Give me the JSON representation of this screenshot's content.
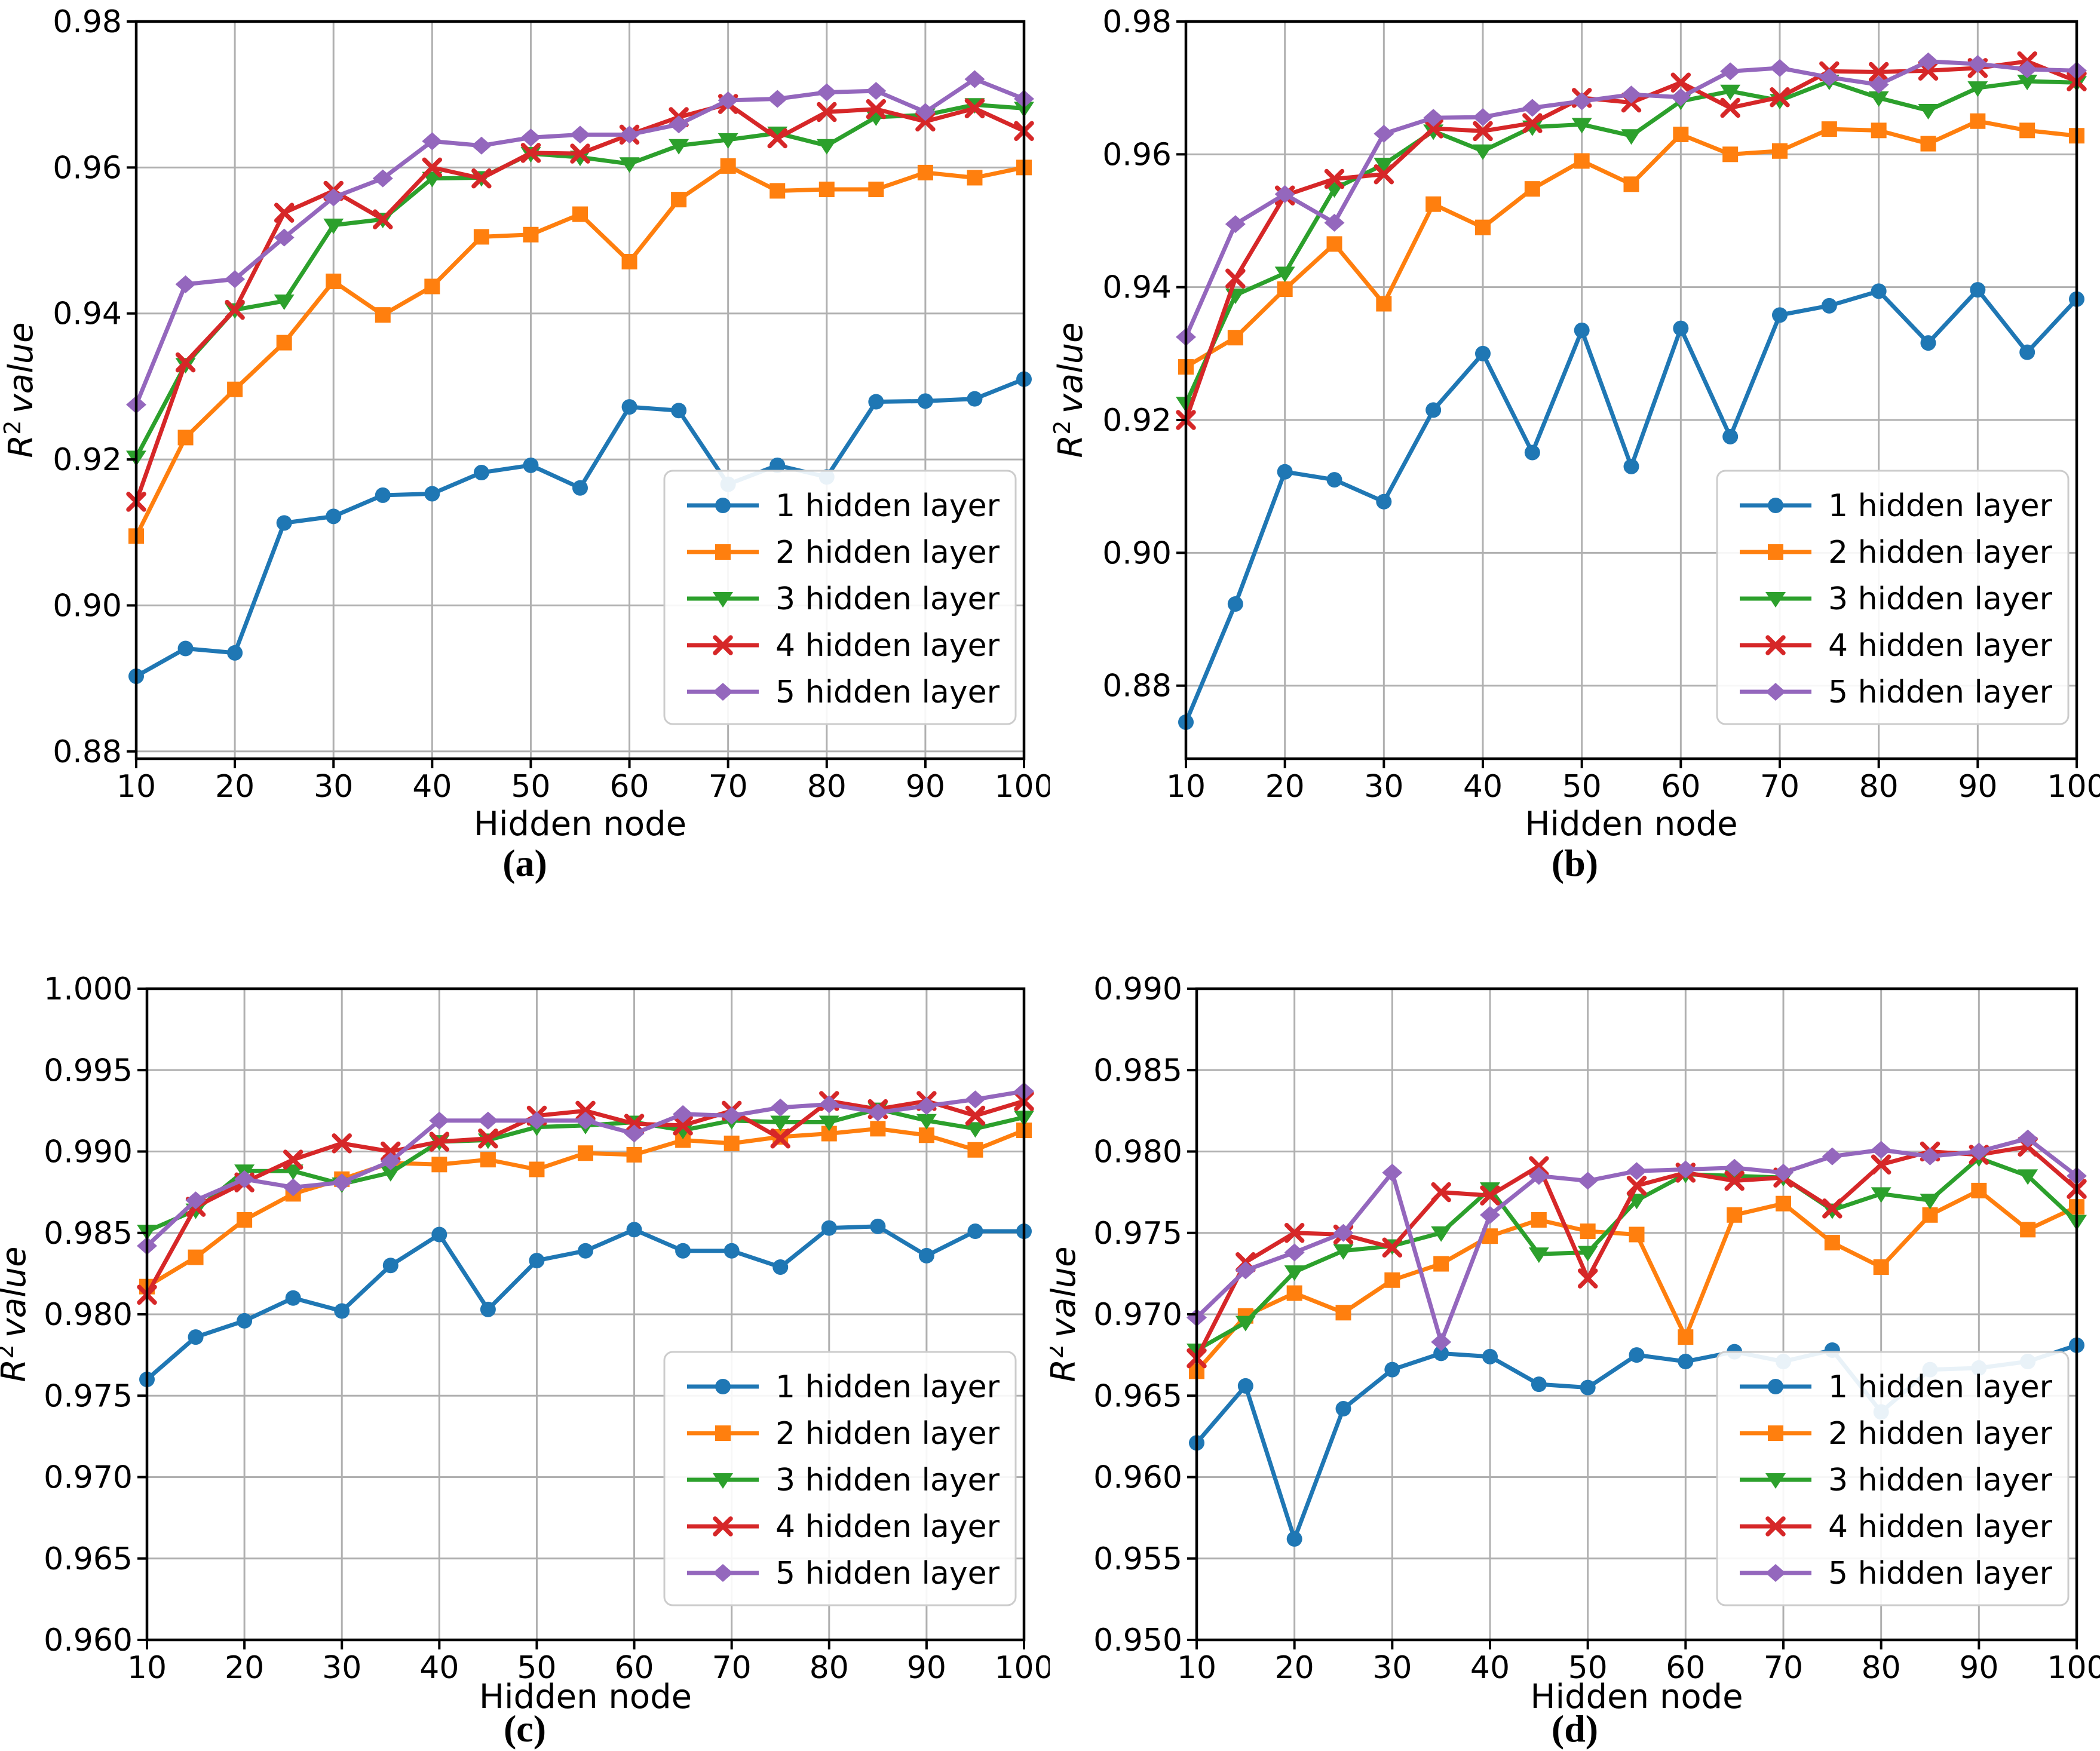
{
  "figure": {
    "background": "#ffffff",
    "grid_color": "#b0b0b0",
    "frame_color": "#000000",
    "legend_border_color": "#cccccc",
    "text_color": "#000000"
  },
  "chart_data": [
    {
      "id": "a",
      "caption": "(a)",
      "type": "line",
      "xlabel": "Hidden node",
      "ylabel": {
        "var": "R",
        "sup": "2",
        "rest": "value"
      },
      "x": [
        10,
        15,
        20,
        25,
        30,
        35,
        40,
        45,
        50,
        55,
        60,
        65,
        70,
        75,
        80,
        85,
        90,
        95,
        100
      ],
      "xlim": [
        10,
        100
      ],
      "xtick_values": [
        10,
        20,
        30,
        40,
        50,
        60,
        70,
        80,
        90,
        100
      ],
      "xtick_labels": [
        "10",
        "20",
        "30",
        "40",
        "50",
        "60",
        "70",
        "80",
        "90",
        "100"
      ],
      "ylim": [
        0.879,
        0.98
      ],
      "ytick_values": [
        0.88,
        0.9,
        0.92,
        0.94,
        0.96,
        0.98
      ],
      "ytick_labels": [
        "0.88",
        "0.90",
        "0.92",
        "0.94",
        "0.96",
        "0.98"
      ],
      "grid": true,
      "legend_position": "lower right",
      "series": [
        {
          "name": "1 hidden layer",
          "color": "#1f77b4",
          "marker": "circle",
          "values": [
            0.8903,
            0.8941,
            0.8935,
            0.9113,
            0.9122,
            0.9151,
            0.9153,
            0.9182,
            0.9192,
            0.9161,
            0.9272,
            0.9267,
            0.9166,
            0.9192,
            0.9176,
            0.9279,
            0.928,
            0.9283,
            0.931
          ]
        },
        {
          "name": "2 hidden layer",
          "color": "#ff7f0e",
          "marker": "square",
          "values": [
            0.9095,
            0.923,
            0.9296,
            0.936,
            0.9444,
            0.9398,
            0.9437,
            0.9505,
            0.9508,
            0.9536,
            0.9471,
            0.9556,
            0.9602,
            0.9568,
            0.957,
            0.957,
            0.9593,
            0.9586,
            0.96
          ]
        },
        {
          "name": "3 hidden layer",
          "color": "#2ca02c",
          "marker": "triangle-down",
          "values": [
            0.9203,
            0.933,
            0.9405,
            0.9417,
            0.9521,
            0.9529,
            0.9585,
            0.9586,
            0.9619,
            0.9614,
            0.9605,
            0.963,
            0.9638,
            0.9647,
            0.963,
            0.9669,
            0.9672,
            0.9686,
            0.9681
          ]
        },
        {
          "name": "4 hidden layer",
          "color": "#d62728",
          "marker": "x",
          "values": [
            0.9142,
            0.9333,
            0.9405,
            0.9538,
            0.9568,
            0.9529,
            0.96,
            0.9585,
            0.962,
            0.9619,
            0.9645,
            0.9669,
            0.9687,
            0.964,
            0.9676,
            0.968,
            0.9663,
            0.9681,
            0.965
          ]
        },
        {
          "name": "5 hidden layer",
          "color": "#9467bd",
          "marker": "diamond",
          "values": [
            0.9275,
            0.944,
            0.9447,
            0.9504,
            0.9559,
            0.9585,
            0.9636,
            0.963,
            0.9641,
            0.9645,
            0.9645,
            0.9659,
            0.9692,
            0.9694,
            0.9703,
            0.9705,
            0.9676,
            0.9721,
            0.9694
          ]
        }
      ]
    },
    {
      "id": "b",
      "caption": "(b)",
      "type": "line",
      "xlabel": "Hidden node",
      "ylabel": {
        "var": "R",
        "sup": "2",
        "rest": "value"
      },
      "x": [
        10,
        15,
        20,
        25,
        30,
        35,
        40,
        45,
        50,
        55,
        60,
        65,
        70,
        75,
        80,
        85,
        90,
        95,
        100
      ],
      "xlim": [
        10,
        100
      ],
      "xtick_values": [
        10,
        20,
        30,
        40,
        50,
        60,
        70,
        80,
        90,
        100
      ],
      "xtick_labels": [
        "10",
        "20",
        "30",
        "40",
        "50",
        "60",
        "70",
        "80",
        "90",
        "100"
      ],
      "ylim": [
        0.869,
        0.98
      ],
      "ytick_values": [
        0.88,
        0.9,
        0.92,
        0.94,
        0.96,
        0.98
      ],
      "ytick_labels": [
        "0.88",
        "0.90",
        "0.92",
        "0.94",
        "0.96",
        "0.98"
      ],
      "grid": true,
      "legend_position": "lower right",
      "series": [
        {
          "name": "1 hidden layer",
          "color": "#1f77b4",
          "marker": "circle",
          "values": [
            0.8745,
            0.8923,
            0.9122,
            0.911,
            0.9077,
            0.9215,
            0.93,
            0.9151,
            0.9335,
            0.913,
            0.9338,
            0.9175,
            0.9358,
            0.9372,
            0.9394,
            0.9316,
            0.9396,
            0.9302,
            0.9382
          ]
        },
        {
          "name": "2 hidden layer",
          "color": "#ff7f0e",
          "marker": "square",
          "values": [
            0.928,
            0.9324,
            0.9397,
            0.9465,
            0.9375,
            0.9525,
            0.949,
            0.9548,
            0.959,
            0.9555,
            0.963,
            0.96,
            0.9605,
            0.9638,
            0.9636,
            0.9616,
            0.965,
            0.9636,
            0.9628
          ]
        },
        {
          "name": "3 hidden layer",
          "color": "#2ca02c",
          "marker": "triangle-down",
          "values": [
            0.9225,
            0.9388,
            0.9421,
            0.9548,
            0.9585,
            0.9635,
            0.9605,
            0.9641,
            0.9645,
            0.9628,
            0.968,
            0.9695,
            0.9681,
            0.971,
            0.9685,
            0.9666,
            0.97,
            0.971,
            0.9708
          ]
        },
        {
          "name": "4 hidden layer",
          "color": "#d62728",
          "marker": "x",
          "values": [
            0.92,
            0.9413,
            0.9538,
            0.9563,
            0.957,
            0.9639,
            0.9635,
            0.9647,
            0.9685,
            0.9678,
            0.9708,
            0.967,
            0.9686,
            0.9725,
            0.9724,
            0.9726,
            0.973,
            0.974,
            0.971
          ]
        },
        {
          "name": "5 hidden layer",
          "color": "#9467bd",
          "marker": "diamond",
          "values": [
            0.9325,
            0.9495,
            0.954,
            0.9497,
            0.9631,
            0.9655,
            0.9656,
            0.967,
            0.968,
            0.969,
            0.9686,
            0.9725,
            0.973,
            0.9716,
            0.9705,
            0.974,
            0.9736,
            0.9728,
            0.9726
          ]
        }
      ]
    },
    {
      "id": "c",
      "caption": "(c)",
      "type": "line",
      "xlabel": "Hidden node",
      "ylabel": {
        "var": "R",
        "sup": "2",
        "rest": "value"
      },
      "x": [
        10,
        15,
        20,
        25,
        30,
        35,
        40,
        45,
        50,
        55,
        60,
        65,
        70,
        75,
        80,
        85,
        90,
        95,
        100
      ],
      "xlim": [
        10,
        100
      ],
      "xtick_values": [
        10,
        20,
        30,
        40,
        50,
        60,
        70,
        80,
        90,
        100
      ],
      "xtick_labels": [
        "10",
        "20",
        "30",
        "40",
        "50",
        "60",
        "70",
        "80",
        "90",
        "100"
      ],
      "ylim": [
        0.96,
        1.0
      ],
      "ytick_values": [
        0.96,
        0.965,
        0.97,
        0.975,
        0.98,
        0.985,
        0.99,
        0.995,
        1.0
      ],
      "ytick_labels": [
        "0.960",
        "0.965",
        "0.970",
        "0.975",
        "0.980",
        "0.985",
        "0.990",
        "0.995",
        "1.000"
      ],
      "grid": true,
      "legend_position": "lower right",
      "series": [
        {
          "name": "1 hidden layer",
          "color": "#1f77b4",
          "marker": "circle",
          "values": [
            0.976,
            0.9786,
            0.9796,
            0.981,
            0.9802,
            0.983,
            0.9849,
            0.9803,
            0.9833,
            0.9839,
            0.9852,
            0.9839,
            0.9839,
            0.9829,
            0.9853,
            0.9854,
            0.9836,
            0.9851,
            0.9851
          ]
        },
        {
          "name": "2 hidden layer",
          "color": "#ff7f0e",
          "marker": "square",
          "values": [
            0.9817,
            0.9835,
            0.9858,
            0.9874,
            0.9883,
            0.9893,
            0.9892,
            0.9895,
            0.9889,
            0.9899,
            0.9898,
            0.9907,
            0.9905,
            0.9909,
            0.9911,
            0.9914,
            0.991,
            0.9901,
            0.9913
          ]
        },
        {
          "name": "3 hidden layer",
          "color": "#2ca02c",
          "marker": "triangle-down",
          "values": [
            0.9851,
            0.9864,
            0.9888,
            0.9888,
            0.988,
            0.9887,
            0.9906,
            0.9907,
            0.9915,
            0.9916,
            0.9918,
            0.9913,
            0.9919,
            0.9918,
            0.9918,
            0.9926,
            0.9919,
            0.9914,
            0.9921
          ]
        },
        {
          "name": "4 hidden layer",
          "color": "#d62728",
          "marker": "x",
          "values": [
            0.9812,
            0.9866,
            0.9881,
            0.9895,
            0.9905,
            0.99,
            0.9906,
            0.9908,
            0.9922,
            0.9925,
            0.9917,
            0.9916,
            0.9925,
            0.9908,
            0.9931,
            0.9926,
            0.9931,
            0.9922,
            0.9931
          ]
        },
        {
          "name": "5 hidden layer",
          "color": "#9467bd",
          "marker": "diamond",
          "values": [
            0.9842,
            0.987,
            0.9883,
            0.9878,
            0.9881,
            0.9894,
            0.9919,
            0.9919,
            0.9919,
            0.9919,
            0.9911,
            0.9923,
            0.9922,
            0.9927,
            0.9929,
            0.9924,
            0.9928,
            0.9932,
            0.9937
          ]
        }
      ]
    },
    {
      "id": "d",
      "caption": "(d)",
      "type": "line",
      "xlabel": "Hidden node",
      "ylabel": {
        "var": "R",
        "sup": "2",
        "rest": "value"
      },
      "x": [
        10,
        15,
        20,
        25,
        30,
        35,
        40,
        45,
        50,
        55,
        60,
        65,
        70,
        75,
        80,
        85,
        90,
        95,
        100
      ],
      "xlim": [
        10,
        100
      ],
      "xtick_values": [
        10,
        20,
        30,
        40,
        50,
        60,
        70,
        80,
        90,
        100
      ],
      "xtick_labels": [
        "10",
        "20",
        "30",
        "40",
        "50",
        "60",
        "70",
        "80",
        "90",
        "100"
      ],
      "ylim": [
        0.95,
        0.99
      ],
      "ytick_values": [
        0.95,
        0.955,
        0.96,
        0.965,
        0.97,
        0.975,
        0.98,
        0.985,
        0.99
      ],
      "ytick_labels": [
        "0.950",
        "0.955",
        "0.960",
        "0.965",
        "0.970",
        "0.975",
        "0.980",
        "0.985",
        "0.990"
      ],
      "grid": true,
      "legend_position": "lower right",
      "series": [
        {
          "name": "1 hidden layer",
          "color": "#1f77b4",
          "marker": "circle",
          "values": [
            0.9621,
            0.9656,
            0.9562,
            0.9642,
            0.9666,
            0.9676,
            0.9674,
            0.9657,
            0.9655,
            0.9675,
            0.9671,
            0.9677,
            0.9671,
            0.9678,
            0.964,
            0.9666,
            0.9667,
            0.9671,
            0.9681
          ]
        },
        {
          "name": "2 hidden layer",
          "color": "#ff7f0e",
          "marker": "square",
          "values": [
            0.9665,
            0.9699,
            0.9713,
            0.9701,
            0.9721,
            0.9731,
            0.9748,
            0.9758,
            0.9751,
            0.9749,
            0.9686,
            0.9761,
            0.9768,
            0.9744,
            0.9729,
            0.9761,
            0.9776,
            0.9752,
            0.9766
          ]
        },
        {
          "name": "3 hidden layer",
          "color": "#2ca02c",
          "marker": "triangle-down",
          "values": [
            0.9678,
            0.9695,
            0.9726,
            0.9739,
            0.9742,
            0.975,
            0.9777,
            0.9737,
            0.9738,
            0.977,
            0.9786,
            0.9785,
            0.9784,
            0.9764,
            0.9774,
            0.977,
            0.9796,
            0.9785,
            0.9757
          ]
        },
        {
          "name": "4 hidden layer",
          "color": "#d62728",
          "marker": "x",
          "values": [
            0.9673,
            0.9732,
            0.975,
            0.9749,
            0.9741,
            0.9775,
            0.9773,
            0.9791,
            0.9722,
            0.9779,
            0.9787,
            0.9782,
            0.9784,
            0.9765,
            0.9792,
            0.98,
            0.9798,
            0.9803,
            0.9777
          ]
        },
        {
          "name": "5 hidden layer",
          "color": "#9467bd",
          "marker": "diamond",
          "values": [
            0.9698,
            0.9727,
            0.9738,
            0.975,
            0.9787,
            0.9683,
            0.9761,
            0.9785,
            0.9782,
            0.9788,
            0.9789,
            0.979,
            0.9787,
            0.9797,
            0.9801,
            0.9797,
            0.98,
            0.9808,
            0.9785
          ]
        }
      ]
    }
  ]
}
